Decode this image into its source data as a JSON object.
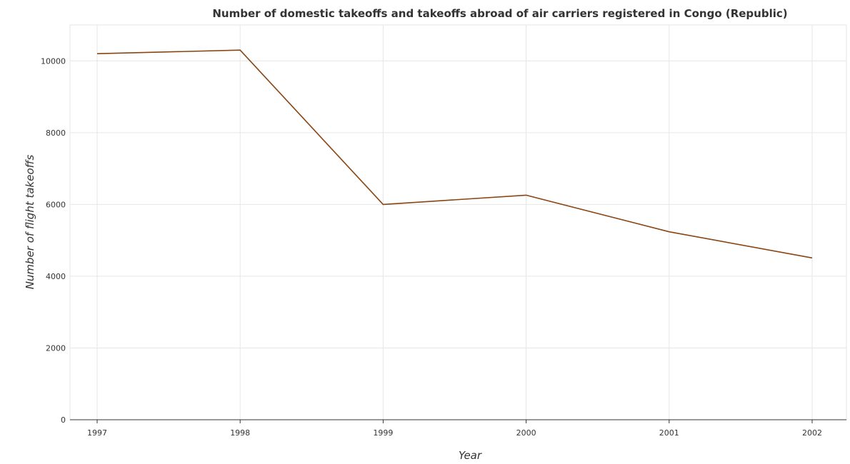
{
  "chart_data": {
    "type": "line",
    "title": "Number of domestic takeoffs and takeoffs abroad of air carriers registered in Congo (Republic)",
    "xlabel": "Year",
    "ylabel": "Number of flight takeoffs",
    "x": [
      "1997",
      "1998",
      "1999",
      "2000",
      "2001",
      "2002"
    ],
    "series": [
      {
        "values": [
          10200,
          10300,
          6000,
          6258,
          5238,
          4510
        ],
        "color": "#8b4513"
      }
    ],
    "ylim": [
      0,
      11000
    ],
    "yticks": [
      0,
      2000,
      4000,
      6000,
      8000,
      10000
    ],
    "grid": true
  }
}
